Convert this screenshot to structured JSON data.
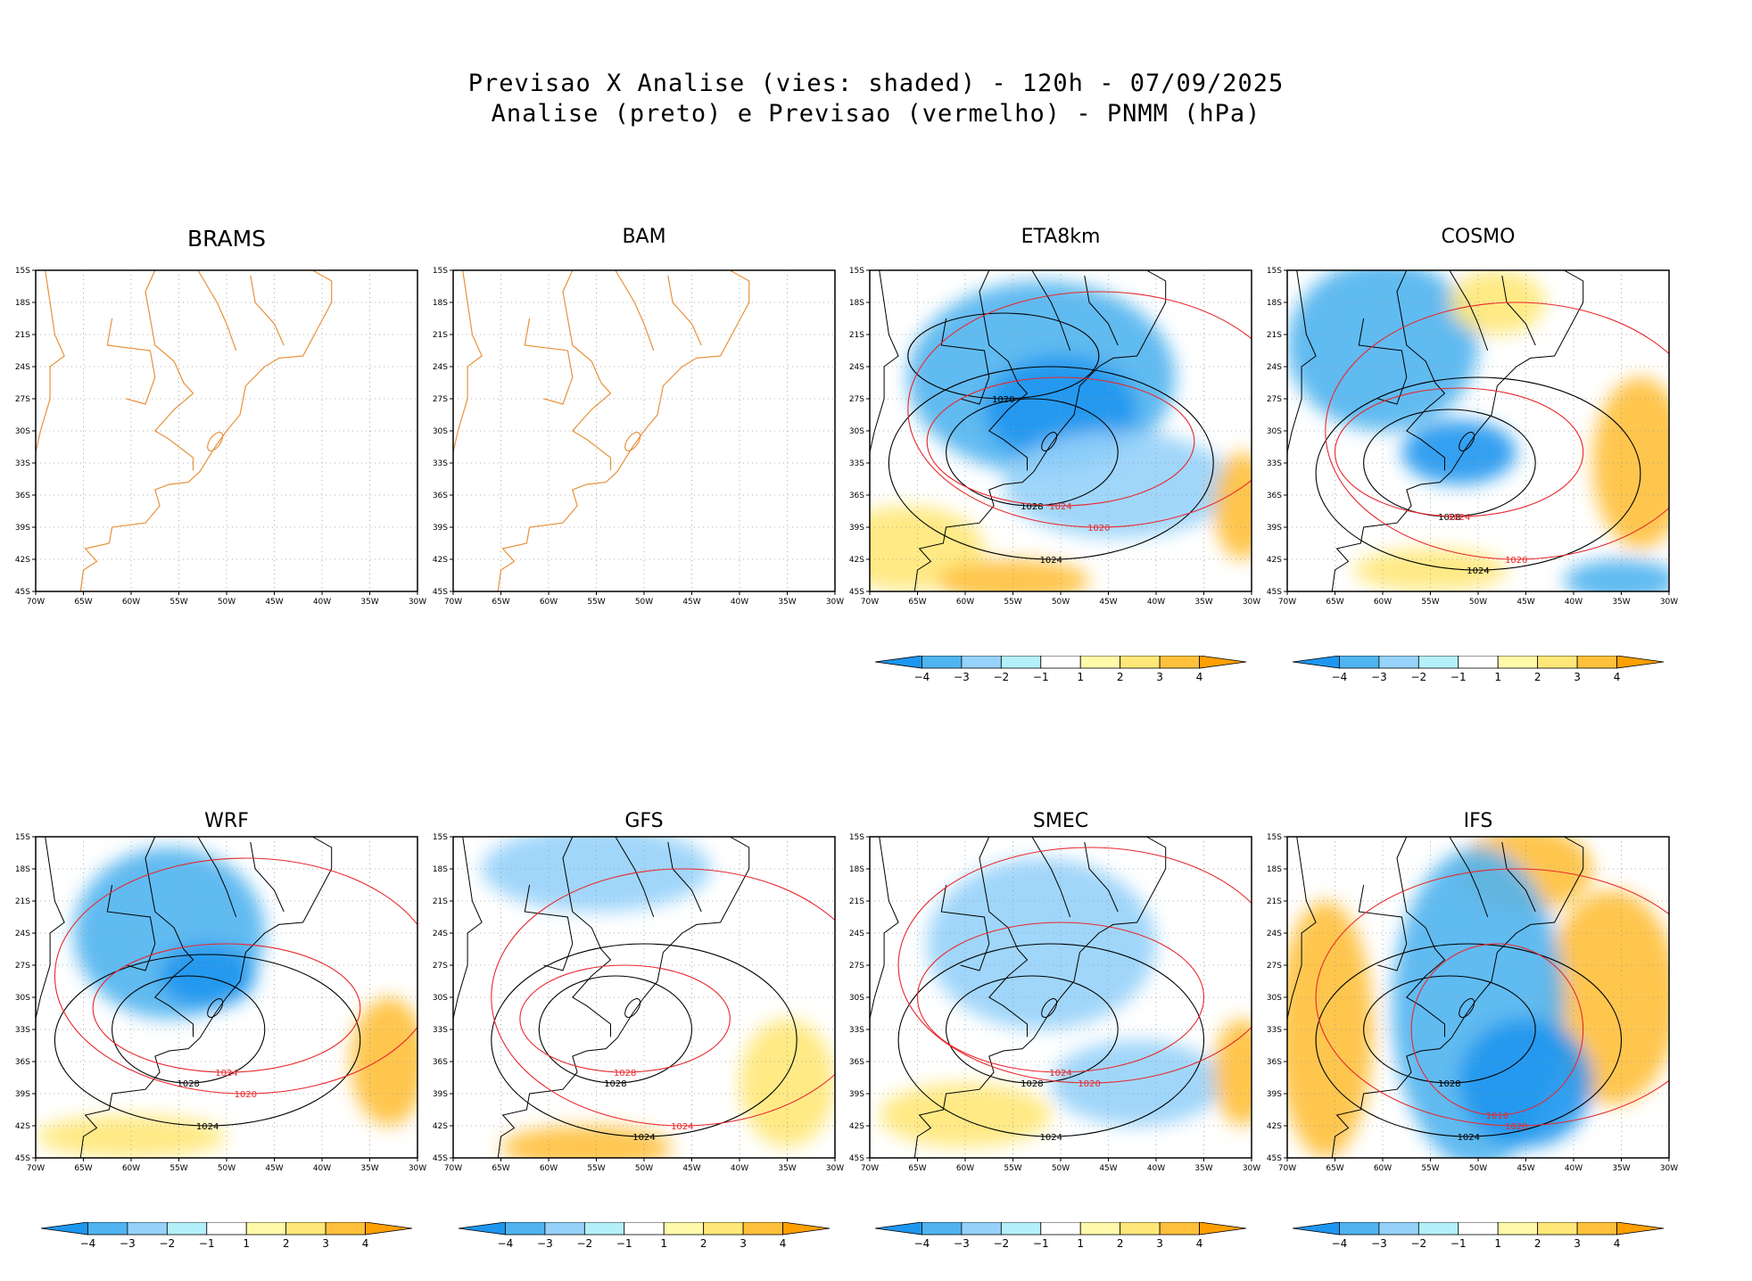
{
  "title": {
    "line1": "Previsao X Analise (vies: shaded) - 120h - 07/09/2025",
    "line2": "Analise (preto) e Previsao (vermelho) - PNMM (hPa)"
  },
  "axes": {
    "lat_labels": [
      "15S",
      "18S",
      "21S",
      "24S",
      "27S",
      "30S",
      "33S",
      "36S",
      "39S",
      "42S",
      "45S"
    ],
    "lon_labels": [
      "70W",
      "65W",
      "60W",
      "55W",
      "50W",
      "45W",
      "40W",
      "35W",
      "30W"
    ]
  },
  "colorbar": {
    "labels": [
      "-4",
      "-3",
      "-2",
      "-1",
      "1",
      "2",
      "3",
      "4"
    ],
    "colors": [
      "#1e96f0",
      "#50b4f0",
      "#96d2fa",
      "#b4f0fa",
      "#ffffff",
      "#fffaaa",
      "#ffe878",
      "#ffc03c",
      "#ffa000"
    ]
  },
  "colors": {
    "analysis_contour": "#000000",
    "forecast_contour": "#e8282d",
    "coastline": "#e8913c"
  },
  "panels": [
    {
      "name": "BRAMS",
      "has_data": false,
      "has_colorbar": false,
      "blobs": [],
      "contours": []
    },
    {
      "name": "BAM",
      "has_data": false,
      "has_colorbar": false,
      "blobs": [],
      "contours": []
    },
    {
      "name": "ETA8km",
      "has_data": true,
      "has_colorbar": true,
      "blobs": [
        {
          "lon": -52,
          "lat": -25,
          "rx": 14,
          "ry": 9,
          "level": -3
        },
        {
          "lon": -50,
          "lat": -28,
          "rx": 8,
          "ry": 5,
          "level": -4
        },
        {
          "lon": -44,
          "lat": -35,
          "rx": 12,
          "ry": 5,
          "level": -2
        },
        {
          "lon": -66,
          "lat": -41,
          "rx": 8,
          "ry": 4,
          "level": 2
        },
        {
          "lon": -55,
          "lat": -44,
          "rx": 8,
          "ry": 2,
          "level": 3
        },
        {
          "lon": -31,
          "lat": -37,
          "rx": 3,
          "ry": 5,
          "level": 3
        }
      ],
      "contours": [
        {
          "type": "analysis",
          "lon": -53,
          "lat": -32,
          "rx": 9,
          "ry": 5,
          "label": "1028"
        },
        {
          "type": "analysis",
          "lon": -51,
          "lat": -33,
          "rx": 17,
          "ry": 9,
          "label": "1024"
        },
        {
          "type": "analysis",
          "lon": -56,
          "lat": -23,
          "rx": 10,
          "ry": 4,
          "label": "1020"
        },
        {
          "type": "forecast",
          "lon": -50,
          "lat": -31,
          "rx": 14,
          "ry": 6,
          "label": "1024"
        },
        {
          "type": "forecast",
          "lon": -46,
          "lat": -28,
          "rx": 20,
          "ry": 11,
          "label": "1020"
        }
      ]
    },
    {
      "name": "COSMO",
      "has_data": true,
      "has_colorbar": true,
      "blobs": [
        {
          "lon": -60,
          "lat": -22,
          "rx": 10,
          "ry": 8,
          "level": -3
        },
        {
          "lon": -52,
          "lat": -32,
          "rx": 6,
          "ry": 3,
          "level": -4
        },
        {
          "lon": -33,
          "lat": -33,
          "rx": 5,
          "ry": 8,
          "level": 3
        },
        {
          "lon": -48,
          "lat": -18,
          "rx": 5,
          "ry": 3,
          "level": 2
        },
        {
          "lon": -35,
          "lat": -44,
          "rx": 6,
          "ry": 2,
          "level": -3
        },
        {
          "lon": -55,
          "lat": -43,
          "rx": 8,
          "ry": 2,
          "level": 2
        }
      ],
      "contours": [
        {
          "type": "analysis",
          "lon": -53,
          "lat": -33,
          "rx": 9,
          "ry": 5,
          "label": "1028"
        },
        {
          "type": "analysis",
          "lon": -50,
          "lat": -34,
          "rx": 17,
          "ry": 9,
          "label": "1024"
        },
        {
          "type": "forecast",
          "lon": -52,
          "lat": -32,
          "rx": 13,
          "ry": 6,
          "label": "1024"
        },
        {
          "type": "forecast",
          "lon": -46,
          "lat": -30,
          "rx": 20,
          "ry": 12,
          "label": "1020"
        }
      ]
    },
    {
      "name": "WRF",
      "has_data": true,
      "has_colorbar": true,
      "blobs": [
        {
          "lon": -56,
          "lat": -24,
          "rx": 10,
          "ry": 8,
          "level": -3
        },
        {
          "lon": -52,
          "lat": -28,
          "rx": 5,
          "ry": 3,
          "level": -4
        },
        {
          "lon": -33,
          "lat": -36,
          "rx": 4,
          "ry": 6,
          "level": 3
        },
        {
          "lon": -60,
          "lat": -43,
          "rx": 10,
          "ry": 2,
          "level": 2
        }
      ],
      "contours": [
        {
          "type": "analysis",
          "lon": -54,
          "lat": -33,
          "rx": 8,
          "ry": 5,
          "label": "1028"
        },
        {
          "type": "analysis",
          "lon": -52,
          "lat": -34,
          "rx": 16,
          "ry": 8,
          "label": "1024"
        },
        {
          "type": "forecast",
          "lon": -50,
          "lat": -31,
          "rx": 14,
          "ry": 6,
          "label": "1024"
        },
        {
          "type": "forecast",
          "lon": -48,
          "lat": -28,
          "rx": 20,
          "ry": 11,
          "label": "1020"
        }
      ]
    },
    {
      "name": "GFS",
      "has_data": true,
      "has_colorbar": true,
      "blobs": [
        {
          "lon": -55,
          "lat": -18,
          "rx": 12,
          "ry": 4,
          "level": -2
        },
        {
          "lon": -35,
          "lat": -38,
          "rx": 5,
          "ry": 6,
          "level": 2
        },
        {
          "lon": -56,
          "lat": -44,
          "rx": 9,
          "ry": 2,
          "level": 3
        }
      ],
      "contours": [
        {
          "type": "analysis",
          "lon": -53,
          "lat": -33,
          "rx": 8,
          "ry": 5,
          "label": "1028"
        },
        {
          "type": "analysis",
          "lon": -50,
          "lat": -34,
          "rx": 16,
          "ry": 9,
          "label": "1024"
        },
        {
          "type": "forecast",
          "lon": -52,
          "lat": -32,
          "rx": 11,
          "ry": 5,
          "label": "1028"
        },
        {
          "type": "forecast",
          "lon": -46,
          "lat": -30,
          "rx": 20,
          "ry": 12,
          "label": "1024"
        }
      ]
    },
    {
      "name": "SMEC",
      "has_data": true,
      "has_colorbar": true,
      "blobs": [
        {
          "lon": -52,
          "lat": -25,
          "rx": 12,
          "ry": 8,
          "level": -2
        },
        {
          "lon": -42,
          "lat": -38,
          "rx": 9,
          "ry": 4,
          "level": -2
        },
        {
          "lon": -60,
          "lat": -41,
          "rx": 9,
          "ry": 3,
          "level": 2
        },
        {
          "lon": -31,
          "lat": -37,
          "rx": 3,
          "ry": 5,
          "level": 3
        }
      ],
      "contours": [
        {
          "type": "analysis",
          "lon": -53,
          "lat": -33,
          "rx": 9,
          "ry": 5,
          "label": "1028"
        },
        {
          "type": "analysis",
          "lon": -51,
          "lat": -34,
          "rx": 16,
          "ry": 9,
          "label": "1024"
        },
        {
          "type": "forecast",
          "lon": -50,
          "lat": -30,
          "rx": 15,
          "ry": 7,
          "label": "1024"
        },
        {
          "type": "forecast",
          "lon": -47,
          "lat": -27,
          "rx": 20,
          "ry": 11,
          "label": "1020"
        }
      ]
    },
    {
      "name": "IFS",
      "has_data": true,
      "has_colorbar": true,
      "blobs": [
        {
          "lon": -66,
          "lat": -33,
          "rx": 5,
          "ry": 12,
          "level": 3
        },
        {
          "lon": -36,
          "lat": -30,
          "rx": 7,
          "ry": 10,
          "level": 3
        },
        {
          "lon": -45,
          "lat": -18,
          "rx": 7,
          "ry": 4,
          "level": 3
        },
        {
          "lon": -50,
          "lat": -31,
          "rx": 9,
          "ry": 15,
          "level": -3
        },
        {
          "lon": -45,
          "lat": -38,
          "rx": 7,
          "ry": 6,
          "level": -4
        }
      ],
      "contours": [
        {
          "type": "analysis",
          "lon": -53,
          "lat": -33,
          "rx": 9,
          "ry": 5,
          "label": "1028"
        },
        {
          "type": "analysis",
          "lon": -51,
          "lat": -34,
          "rx": 16,
          "ry": 9,
          "label": "1024"
        },
        {
          "type": "forecast",
          "lon": -48,
          "lat": -33,
          "rx": 9,
          "ry": 8,
          "label": "1016"
        },
        {
          "type": "forecast",
          "lon": -46,
          "lat": -30,
          "rx": 21,
          "ry": 12,
          "label": "1020"
        }
      ]
    }
  ]
}
